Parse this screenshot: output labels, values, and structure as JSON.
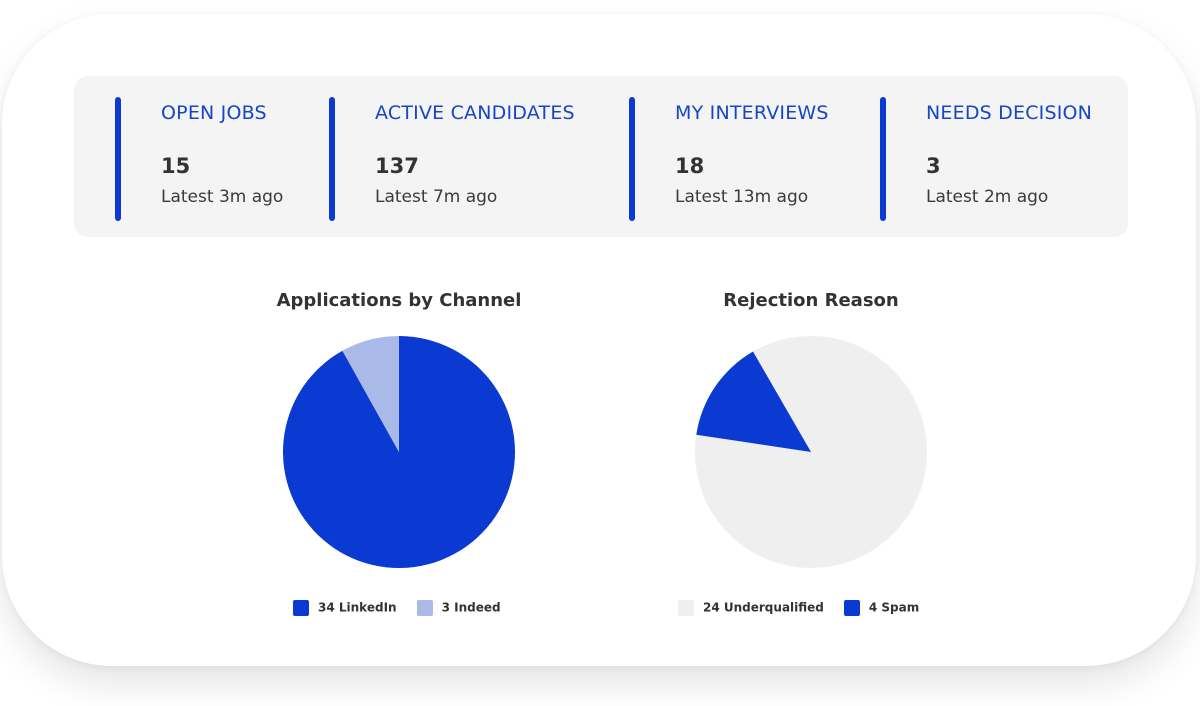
{
  "stats": [
    {
      "label": "OPEN JOBS",
      "value": "15",
      "sub": "Latest 3m ago"
    },
    {
      "label": "ACTIVE CANDIDATES",
      "value": "137",
      "sub": "Latest 7m ago"
    },
    {
      "label": "MY INTERVIEWS",
      "value": "18",
      "sub": "Latest 13m ago"
    },
    {
      "label": "NEEDS DECISION",
      "value": "3",
      "sub": "Latest 2m ago"
    }
  ],
  "colors": {
    "accent": "#0a3ad2",
    "accent_light": "#a9b9e8",
    "neutral_slice": "#efefef",
    "label_blue": "#1745c8",
    "panel_bg": "#f4f4f4"
  },
  "chart_data": [
    {
      "type": "pie",
      "title": "Applications by Channel",
      "series": [
        {
          "name": "LinkedIn",
          "value": 34,
          "color": "#0a3ad2",
          "legend": "34 LinkedIn"
        },
        {
          "name": "Indeed",
          "value": 3,
          "color": "#a9b9e8",
          "legend": "3 Indeed"
        }
      ],
      "legend_position": "bottom"
    },
    {
      "type": "pie",
      "title": "Rejection Reason",
      "series": [
        {
          "name": "Underqualified",
          "value": 24,
          "color": "#efefef",
          "legend": "24 Underqualified"
        },
        {
          "name": "Spam",
          "value": 4,
          "color": "#0a3ad2",
          "legend": "4 Spam"
        }
      ],
      "legend_position": "bottom"
    }
  ]
}
